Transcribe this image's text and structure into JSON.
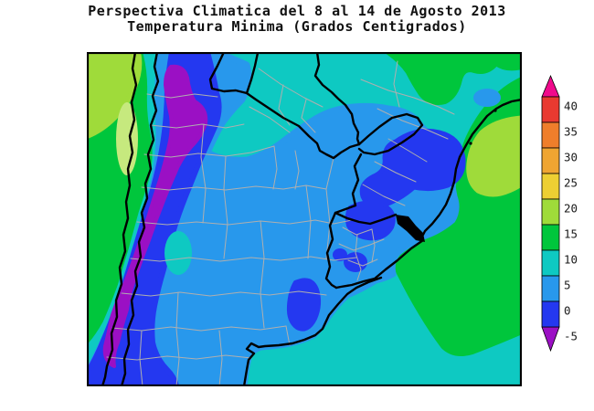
{
  "title": {
    "line1": "Perspectiva Climatica del 8 al 14 de Agosto 2013",
    "line2": "Temperatura Minima (Grados Centigrados)"
  },
  "legend": {
    "unit_labels": [
      "40",
      "35",
      "30",
      "25",
      "20",
      "15",
      "10",
      "5",
      "0",
      "-5"
    ],
    "segment_colors": [
      "#E83A30",
      "#EF7E2B",
      "#EFA532",
      "#EDCF33",
      "#9FDB3A",
      "#00C63C",
      "#0EC9C2",
      "#2898EC",
      "#2438F0"
    ],
    "above_max_color": "#F00A8C",
    "below_min_color": "#9B10C4",
    "scale_boundaries_celsius": [
      40,
      35,
      30,
      25,
      20,
      15,
      10,
      5,
      0,
      -5
    ]
  },
  "palette": {
    "teal": "#0EC9C2",
    "green": "#00C63C",
    "yellow_green": "#9FDB3A",
    "pale_green": "#C6E97E",
    "azure": "#2898EC",
    "royal": "#2438F0",
    "purple": "#9B10C4",
    "border": "#000000",
    "admin_line": "#AFAFAF",
    "background": "#FFFFFF"
  }
}
